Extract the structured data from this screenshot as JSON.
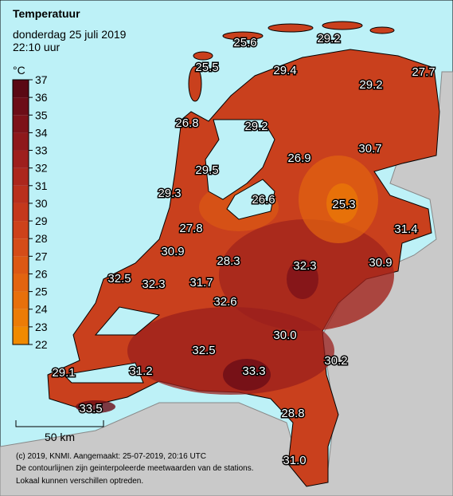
{
  "header": {
    "title": "Temperatuur",
    "date": "donderdag 25 juli 2019",
    "time": "22:10 uur"
  },
  "colorbar": {
    "unit": "°C",
    "ticks": [
      22,
      23,
      24,
      25,
      26,
      27,
      28,
      29,
      30,
      31,
      32,
      33,
      34,
      35,
      36,
      37
    ],
    "colors": [
      "#f08a00",
      "#ec7c06",
      "#e7700c",
      "#e26410",
      "#dc5814",
      "#d54c18",
      "#cd421b",
      "#c4381c",
      "#b9301d",
      "#ac271d",
      "#9e1f1d",
      "#8e181b",
      "#7d1219",
      "#6c0d17",
      "#5a0914"
    ]
  },
  "stations": [
    "25.6",
    "29.2",
    "25.5",
    "29.4",
    "29.2",
    "27.7",
    "26.8",
    "29.2",
    "26.9",
    "30.7",
    "29.5",
    "29.3",
    "26.6",
    "25.3",
    "27.8",
    "31.4",
    "30.9",
    "28.3",
    "32.3",
    "30.9",
    "32.5",
    "32.3",
    "31.7",
    "32.6",
    "30.0",
    "32.5",
    "33.3",
    "30.2",
    "29.1",
    "31.2",
    "33.5",
    "28.8",
    "31.0"
  ],
  "scale": "50 km",
  "footer": [
    "(c) 2019, KNMI. Aangemaakt: 25-07-2019, 20:16 UTC",
    "De contourlijnen zijn geinterpoleerde meetwaarden van de stations.",
    "Lokaal kunnen verschillen optreden."
  ]
}
